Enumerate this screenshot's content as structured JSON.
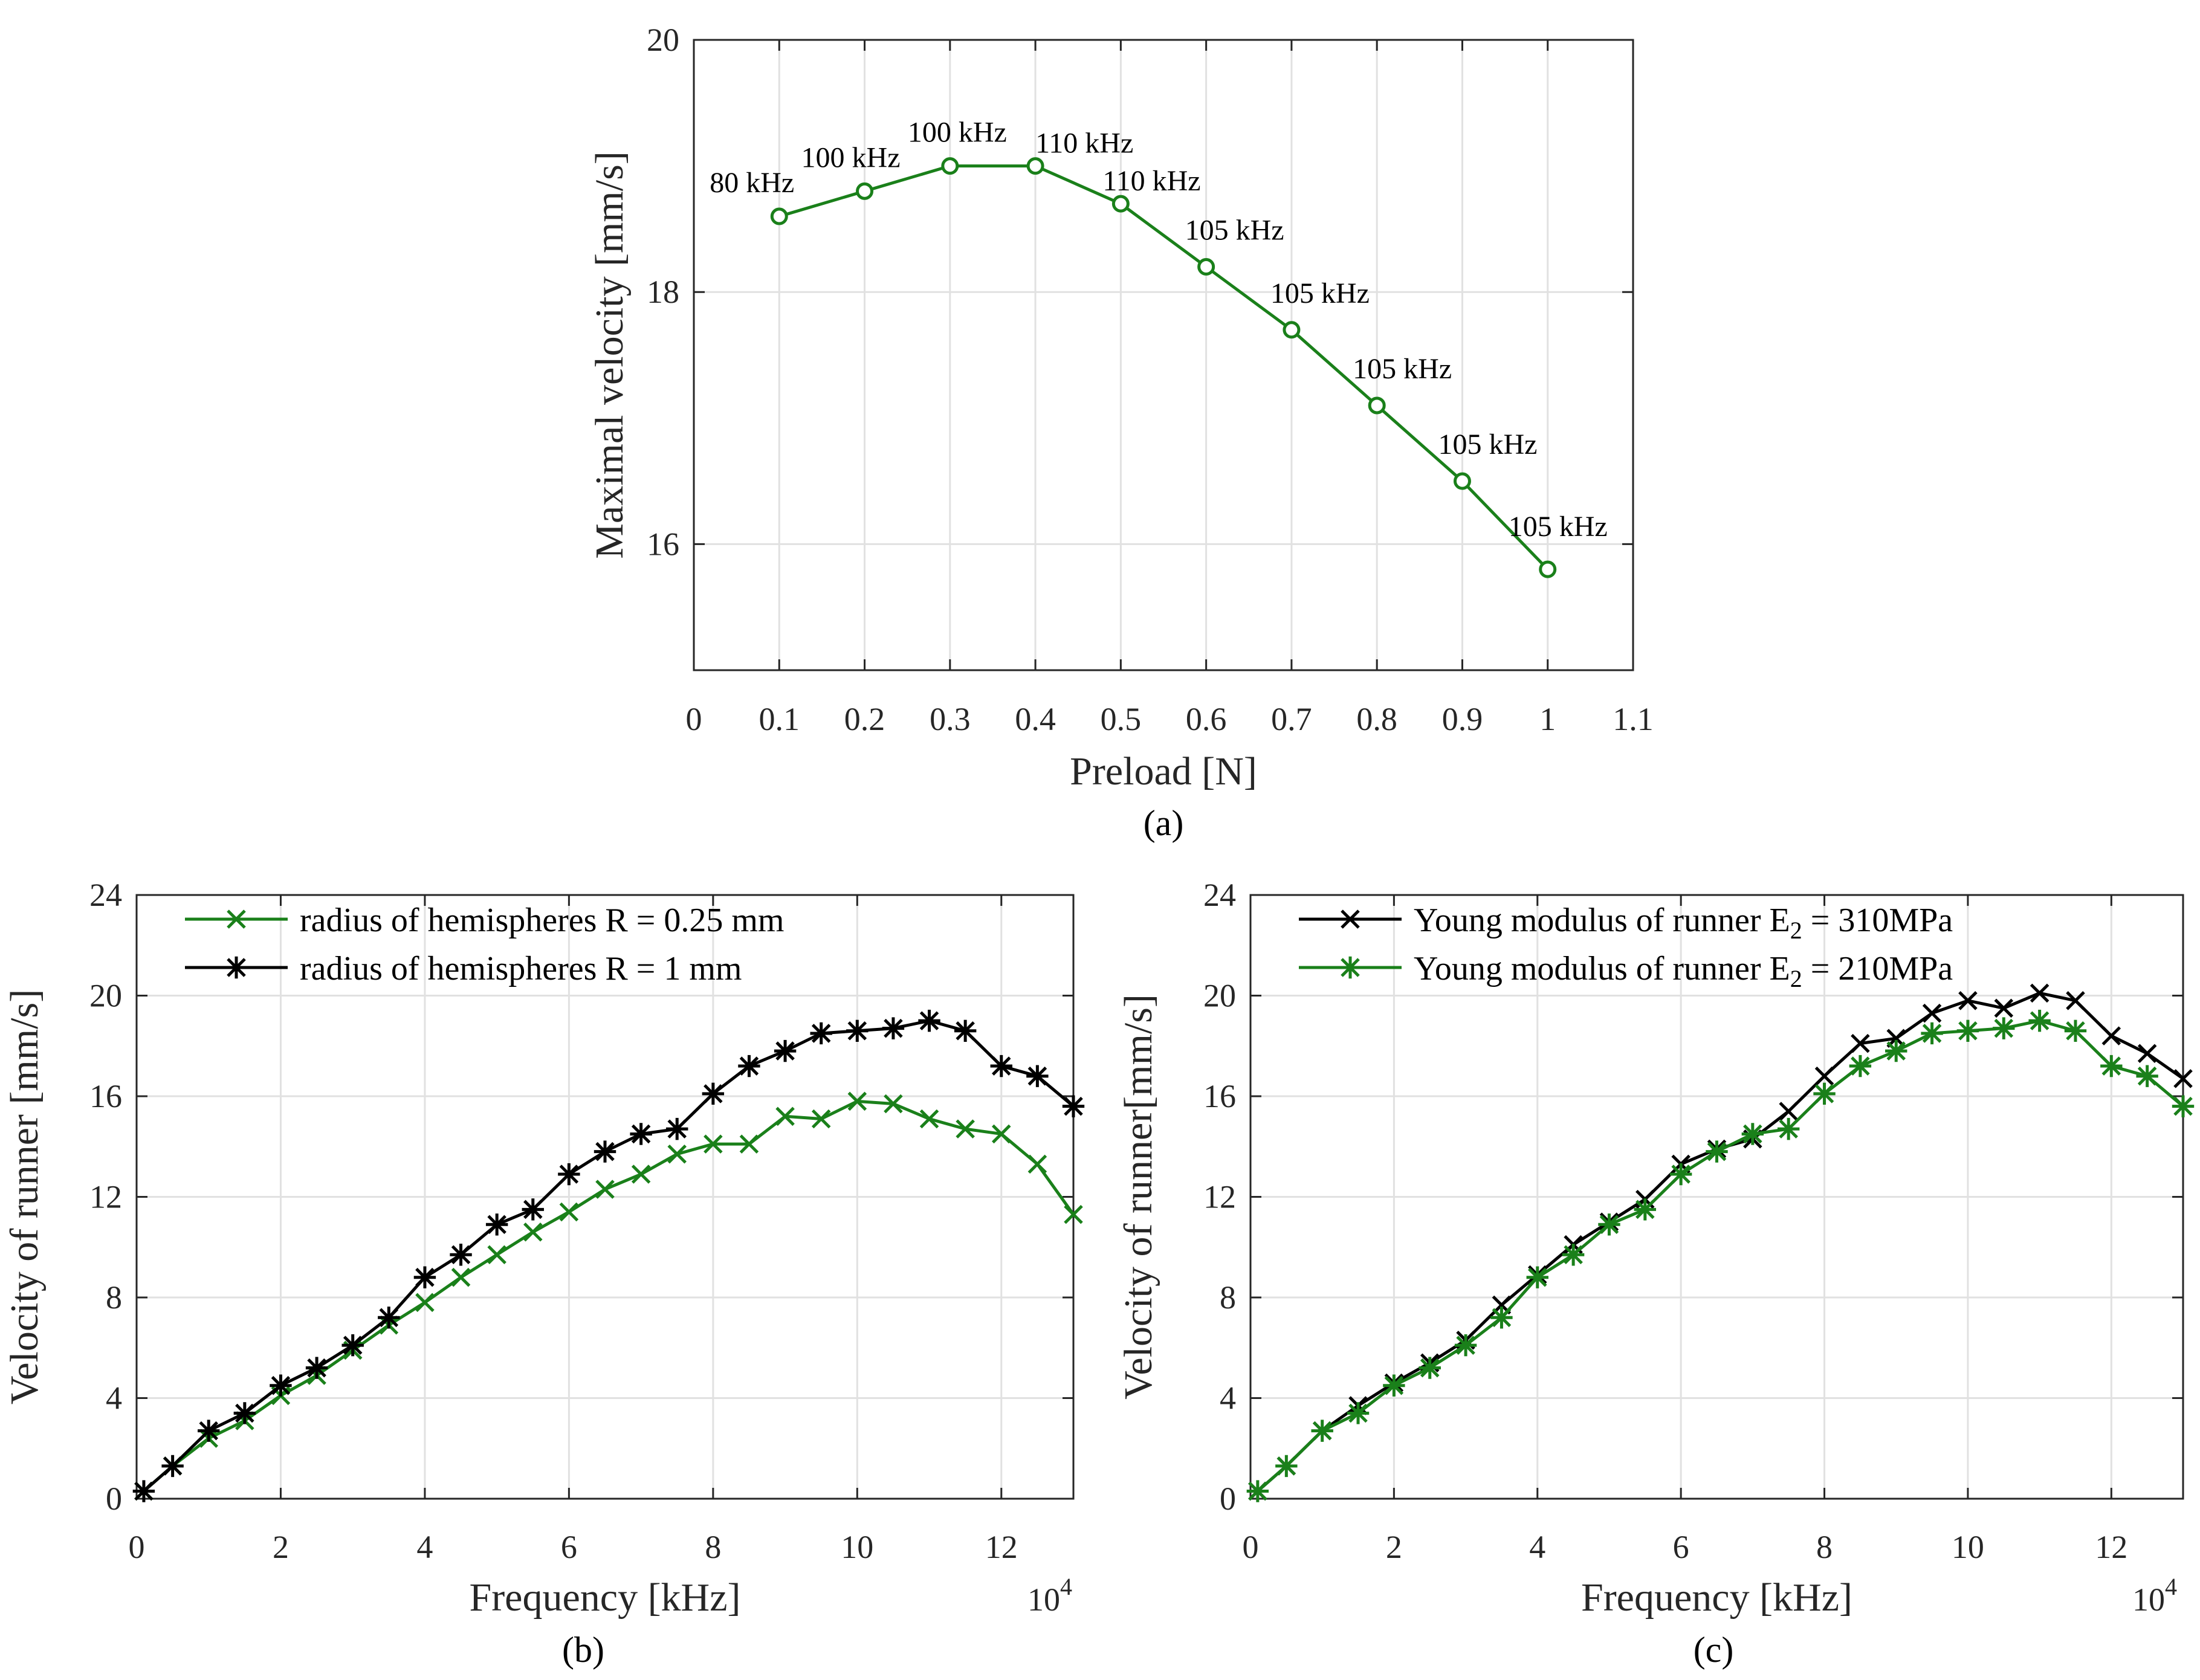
{
  "chart_data": [
    {
      "id": "a",
      "type": "line",
      "caption": "(a)",
      "xlabel": "Preload [N]",
      "ylabel": "Maximal velocity [mm/s]",
      "xlim": [
        0,
        1.1
      ],
      "ylim": [
        15,
        20
      ],
      "xticks": [
        0,
        0.1,
        0.2,
        0.3,
        0.4,
        0.5,
        0.6,
        0.7,
        0.8,
        0.9,
        1,
        1.1
      ],
      "yticks": [
        16,
        18,
        20
      ],
      "grid": true,
      "series": [
        {
          "name": "Maximal velocity",
          "color": "#1a801a",
          "marker": "circle",
          "x": [
            0.1,
            0.2,
            0.3,
            0.4,
            0.5,
            0.6,
            0.7,
            0.8,
            0.9,
            1.0
          ],
          "y": [
            18.6,
            18.8,
            19.0,
            19.0,
            18.7,
            18.2,
            17.7,
            17.1,
            16.5,
            15.8
          ]
        }
      ],
      "annotations": [
        {
          "x": 0.1,
          "y": 18.6,
          "text": "80 kHz"
        },
        {
          "x": 0.2,
          "y": 18.8,
          "text": "100 kHz"
        },
        {
          "x": 0.3,
          "y": 19.0,
          "text": "100 kHz"
        },
        {
          "x": 0.4,
          "y": 19.0,
          "text": "110 kHz"
        },
        {
          "x": 0.5,
          "y": 18.7,
          "text": "110 kHz"
        },
        {
          "x": 0.6,
          "y": 18.2,
          "text": "105 kHz"
        },
        {
          "x": 0.7,
          "y": 17.7,
          "text": "105 kHz"
        },
        {
          "x": 0.8,
          "y": 17.1,
          "text": "105 kHz"
        },
        {
          "x": 0.9,
          "y": 16.5,
          "text": "105 kHz"
        },
        {
          "x": 1.0,
          "y": 15.8,
          "text": "105 kHz"
        }
      ]
    },
    {
      "id": "b",
      "type": "line",
      "caption": "(b)",
      "xlabel": "Frequency [kHz]",
      "ylabel": "Velocity of runner [mm/s]",
      "x_exponent_base": "10",
      "x_exponent": "4",
      "xlim": [
        0,
        13
      ],
      "ylim": [
        0,
        24
      ],
      "xticks": [
        0,
        2,
        4,
        6,
        8,
        10,
        12
      ],
      "yticks": [
        0,
        4,
        8,
        12,
        16,
        20,
        24
      ],
      "grid": true,
      "legend_position": "top-left",
      "series": [
        {
          "name": "radius of hemispheres R = 0.25 mm",
          "color": "#1a801a",
          "marker": "x",
          "x": [
            0.1,
            0.5,
            1,
            1.5,
            2,
            2.5,
            3,
            3.5,
            4,
            4.5,
            5,
            5.5,
            6,
            6.5,
            7,
            7.5,
            8,
            8.5,
            9,
            9.5,
            10,
            10.5,
            11,
            11.5,
            12,
            12.5,
            13
          ],
          "y": [
            0.3,
            1.3,
            2.4,
            3.1,
            4.1,
            4.9,
            5.9,
            6.9,
            7.8,
            8.8,
            9.7,
            10.6,
            11.4,
            12.3,
            12.9,
            13.7,
            14.1,
            14.1,
            15.2,
            15.1,
            15.8,
            15.7,
            15.1,
            14.7,
            14.5,
            13.3,
            11.3
          ]
        },
        {
          "name": "radius of hemispheres R = 1 mm",
          "color": "#000000",
          "marker": "asterisk",
          "x": [
            0.1,
            0.5,
            1,
            1.5,
            2,
            2.5,
            3,
            3.5,
            4,
            4.5,
            5,
            5.5,
            6,
            6.5,
            7,
            7.5,
            8,
            8.5,
            9,
            9.5,
            10,
            10.5,
            11,
            11.5,
            12,
            12.5,
            13
          ],
          "y": [
            0.3,
            1.3,
            2.7,
            3.4,
            4.5,
            5.2,
            6.1,
            7.2,
            8.8,
            9.7,
            10.9,
            11.5,
            12.9,
            13.8,
            14.5,
            14.7,
            16.1,
            17.2,
            17.8,
            18.5,
            18.6,
            18.7,
            19.0,
            18.6,
            17.2,
            16.8,
            15.6
          ]
        }
      ]
    },
    {
      "id": "c",
      "type": "line",
      "caption": "(c)",
      "xlabel": "Frequency [kHz]",
      "ylabel": "Velocity of runner[mm/s]",
      "x_exponent_base": "10",
      "x_exponent": "4",
      "xlim": [
        0,
        13
      ],
      "ylim": [
        0,
        24
      ],
      "xticks": [
        0,
        2,
        4,
        6,
        8,
        10,
        12
      ],
      "yticks": [
        0,
        4,
        8,
        12,
        16,
        20,
        24
      ],
      "grid": true,
      "legend_position": "top-left",
      "series": [
        {
          "name": "Young modulus of runner E",
          "subscript": "2",
          "name_suffix": " = 310MPa",
          "color": "#000000",
          "marker": "x",
          "x": [
            0.1,
            0.5,
            1,
            1.5,
            2,
            2.5,
            3,
            3.5,
            4,
            4.5,
            5,
            5.5,
            6,
            6.5,
            7,
            7.5,
            8,
            8.5,
            9,
            9.5,
            10,
            10.5,
            11,
            11.5,
            12,
            12.5,
            13
          ],
          "y": [
            0.3,
            1.3,
            2.7,
            3.7,
            4.6,
            5.4,
            6.3,
            7.7,
            8.9,
            10.1,
            11.0,
            11.9,
            13.3,
            13.9,
            14.3,
            15.4,
            16.8,
            18.1,
            18.3,
            19.3,
            19.8,
            19.5,
            20.1,
            19.8,
            18.4,
            17.7,
            16.7
          ]
        },
        {
          "name": "Young modulus of runner E",
          "subscript": "2",
          "name_suffix": " = 210MPa",
          "color": "#1a801a",
          "marker": "asterisk",
          "x": [
            0.1,
            0.5,
            1,
            1.5,
            2,
            2.5,
            3,
            3.5,
            4,
            4.5,
            5,
            5.5,
            6,
            6.5,
            7,
            7.5,
            8,
            8.5,
            9,
            9.5,
            10,
            10.5,
            11,
            11.5,
            12,
            12.5,
            13
          ],
          "y": [
            0.3,
            1.3,
            2.7,
            3.4,
            4.5,
            5.2,
            6.1,
            7.2,
            8.8,
            9.7,
            10.9,
            11.5,
            12.9,
            13.8,
            14.5,
            14.7,
            16.1,
            17.2,
            17.8,
            18.5,
            18.6,
            18.7,
            19.0,
            18.6,
            17.2,
            16.8,
            15.6
          ]
        }
      ]
    }
  ]
}
